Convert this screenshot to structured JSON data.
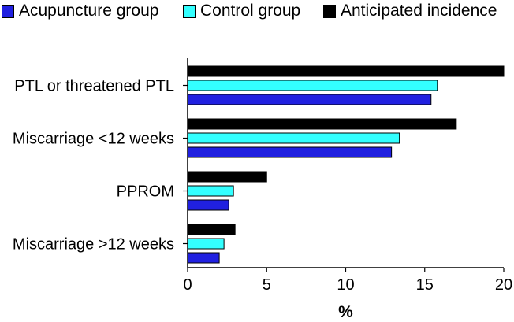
{
  "chart_data": {
    "type": "bar",
    "orientation": "horizontal",
    "title": "",
    "xlabel": "%",
    "ylabel": "",
    "xlim": [
      0,
      20
    ],
    "xticks": [
      0,
      5,
      10,
      15,
      20
    ],
    "grid": false,
    "legend_position": "top",
    "categories": [
      "PTL or threatened PTL",
      "Miscarriage <12 weeks",
      "PPROM",
      "Miscarriage >12 weeks"
    ],
    "series": [
      {
        "name": "Acupuncture group",
        "color": "#2020e0",
        "values": [
          15.4,
          12.9,
          2.6,
          2.0
        ]
      },
      {
        "name": "Control group",
        "color": "#33ffff",
        "values": [
          15.8,
          13.4,
          2.9,
          2.3
        ]
      },
      {
        "name": "Anticipated incidence",
        "color": "#000000",
        "values": [
          20.0,
          17.0,
          5.0,
          3.0
        ]
      }
    ]
  }
}
